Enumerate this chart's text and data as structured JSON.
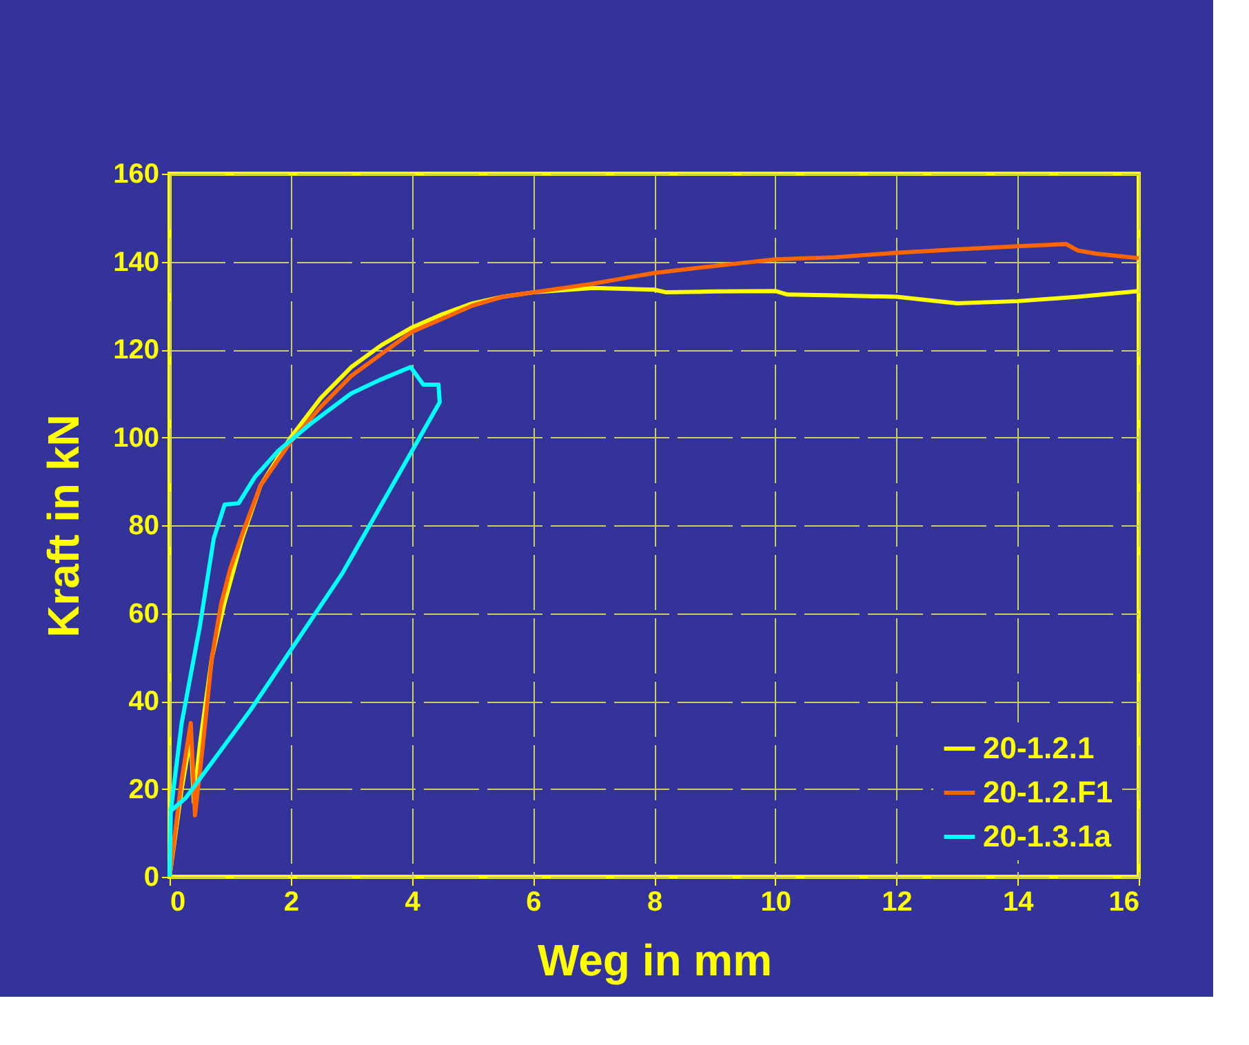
{
  "chart_data": {
    "type": "line",
    "xlabel": "Weg in mm",
    "ylabel": "Kraft in kN",
    "xlim": [
      0,
      16
    ],
    "xticks": [
      0,
      2,
      4,
      6,
      8,
      10,
      12,
      14,
      16
    ],
    "ylim": [
      0,
      160
    ],
    "yticks": [
      0,
      20,
      40,
      60,
      80,
      100,
      120,
      140,
      160
    ],
    "grid": true,
    "legend": "bottom right",
    "marker": "none",
    "line_style": "solid",
    "series": [
      {
        "name": "20-1.2.1",
        "color": "#ffff00",
        "x": [
          0,
          0.2,
          0.35,
          0.4,
          0.5,
          0.7,
          0.9,
          1.2,
          1.5,
          2,
          2.5,
          3,
          3.5,
          4,
          4.5,
          5,
          5.5,
          6,
          7,
          8,
          8.2,
          9,
          10,
          10.2,
          11,
          12,
          13,
          14,
          15,
          16
        ],
        "values": [
          0,
          20,
          32,
          17,
          30,
          50,
          62,
          77,
          89,
          100,
          109,
          116,
          121,
          125,
          128,
          130.5,
          132,
          133,
          134,
          133.6,
          133,
          133.2,
          133.3,
          132.5,
          132.3,
          132,
          130.5,
          131,
          132,
          133.3
        ]
      },
      {
        "name": "20-1.2.F1",
        "color": "#ff6600",
        "x": [
          0,
          0.2,
          0.35,
          0.42,
          0.55,
          0.7,
          0.85,
          1,
          1.2,
          1.5,
          2,
          2.5,
          3,
          3.5,
          4,
          4.5,
          5,
          5.5,
          6,
          7,
          8,
          9,
          10,
          11,
          12,
          13,
          14,
          14.8,
          15,
          15.3,
          16
        ],
        "values": [
          0,
          22,
          35,
          14,
          30,
          50,
          62,
          70,
          78,
          89,
          99,
          107,
          114,
          119,
          124,
          127,
          130,
          132,
          133,
          135,
          137.4,
          139,
          140.5,
          141,
          142,
          142.8,
          143.5,
          144,
          142.5,
          141.8,
          140.8
        ]
      },
      {
        "name": "20-1.3.1a",
        "color": "#00ffff",
        "x": [
          0,
          0.02,
          0.2,
          0.5,
          0.73,
          0.91,
          1.14,
          1.41,
          1.8,
          2.32,
          3,
          3.46,
          3.98,
          4.19,
          4.44,
          4.46,
          2.85,
          1.34,
          0.27,
          0.02
        ],
        "values": [
          0,
          15,
          35,
          57,
          77,
          84.7,
          85,
          91,
          97,
          103,
          110,
          113,
          116,
          112,
          112,
          108,
          69,
          38,
          18,
          15
        ]
      }
    ]
  }
}
